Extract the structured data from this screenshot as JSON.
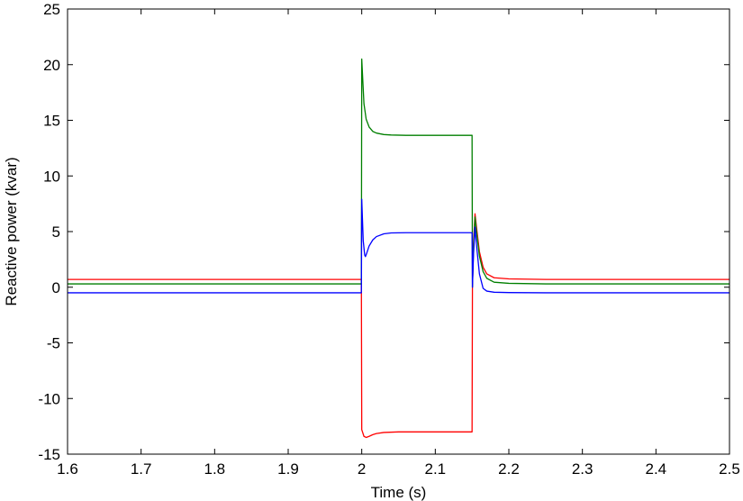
{
  "chart_data": {
    "type": "line",
    "title": "",
    "xlabel": "Time (s)",
    "ylabel": "Reactive power (kvar)",
    "xlim": [
      1.6,
      2.5
    ],
    "ylim": [
      -15,
      25
    ],
    "xticks": [
      1.6,
      1.7,
      1.8,
      1.9,
      2.0,
      2.1,
      2.2,
      2.3,
      2.4,
      2.5
    ],
    "xtick_labels": [
      "1.6",
      "1.7",
      "1.8",
      "1.9",
      "2",
      "2.1",
      "2.2",
      "2.3",
      "2.4",
      "2.5"
    ],
    "yticks": [
      -15,
      -10,
      -5,
      0,
      5,
      10,
      15,
      20,
      25
    ],
    "ytick_labels": [
      "-15",
      "-10",
      "-5",
      "0",
      "5",
      "10",
      "15",
      "20",
      "25"
    ],
    "grid": false,
    "legend": "none",
    "series": [
      {
        "color": "#ff0000",
        "x": [
          1.6,
          1.9995,
          2.0,
          2.003,
          2.006,
          2.01,
          2.015,
          2.02,
          2.03,
          2.05,
          2.08,
          2.15,
          2.1505,
          2.152,
          2.154,
          2.156,
          2.16,
          2.165,
          2.17,
          2.18,
          2.2,
          2.25,
          2.5
        ],
        "y": [
          0.7,
          0.7,
          -12.8,
          -13.4,
          -13.5,
          -13.4,
          -13.25,
          -13.15,
          -13.05,
          -13.0,
          -13.0,
          -13.0,
          0.0,
          4.0,
          6.6,
          5.4,
          3.2,
          1.8,
          1.2,
          0.85,
          0.75,
          0.7,
          0.7
        ]
      },
      {
        "color": "#007f00",
        "x": [
          1.6,
          1.9995,
          2.0,
          2.0015,
          2.003,
          2.006,
          2.01,
          2.015,
          2.02,
          2.03,
          2.04,
          2.06,
          2.1,
          2.15,
          2.1505,
          2.152,
          2.154,
          2.156,
          2.16,
          2.165,
          2.17,
          2.18,
          2.2,
          2.25,
          2.5
        ],
        "y": [
          0.3,
          0.3,
          20.5,
          18.5,
          16.5,
          15.1,
          14.4,
          14.0,
          13.85,
          13.72,
          13.68,
          13.65,
          13.65,
          13.65,
          0.0,
          3.5,
          6.3,
          5.0,
          2.8,
          1.4,
          0.8,
          0.45,
          0.35,
          0.3,
          0.3
        ]
      },
      {
        "color": "#0000ff",
        "x": [
          1.6,
          1.9995,
          2.0,
          2.002,
          2.004,
          2.005,
          2.007,
          2.01,
          2.015,
          2.02,
          2.03,
          2.04,
          2.06,
          2.1,
          2.15,
          2.1505,
          2.152,
          2.154,
          2.156,
          2.16,
          2.165,
          2.17,
          2.18,
          2.2,
          2.25,
          2.5
        ],
        "y": [
          -0.5,
          -0.5,
          7.9,
          4.2,
          2.9,
          2.75,
          3.1,
          3.7,
          4.25,
          4.55,
          4.8,
          4.88,
          4.9,
          4.9,
          4.9,
          0.0,
          3.0,
          5.4,
          3.8,
          1.2,
          -0.1,
          -0.35,
          -0.45,
          -0.48,
          -0.5,
          -0.5
        ]
      }
    ]
  }
}
